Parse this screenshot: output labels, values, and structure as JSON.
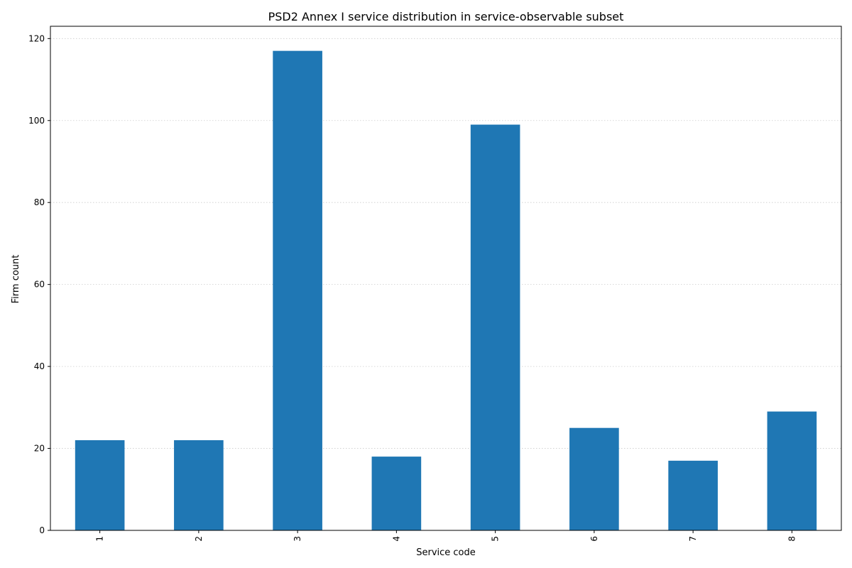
{
  "chart_data": {
    "type": "bar",
    "title": "PSD2 Annex I service distribution in service-observable subset",
    "xlabel": "Service code",
    "ylabel": "Firm count",
    "categories": [
      "1",
      "2",
      "3",
      "4",
      "5",
      "6",
      "7",
      "8"
    ],
    "values": [
      22,
      22,
      117,
      18,
      99,
      25,
      17,
      29
    ],
    "ylim": [
      0,
      123
    ],
    "yticks": [
      0,
      20,
      40,
      60,
      80,
      100,
      120
    ],
    "grid": "y-dotted",
    "bar_color": "#1f77b4",
    "grid_color": "#cccccc",
    "axis_color": "#000000",
    "x_tick_rotation": "vertical"
  }
}
